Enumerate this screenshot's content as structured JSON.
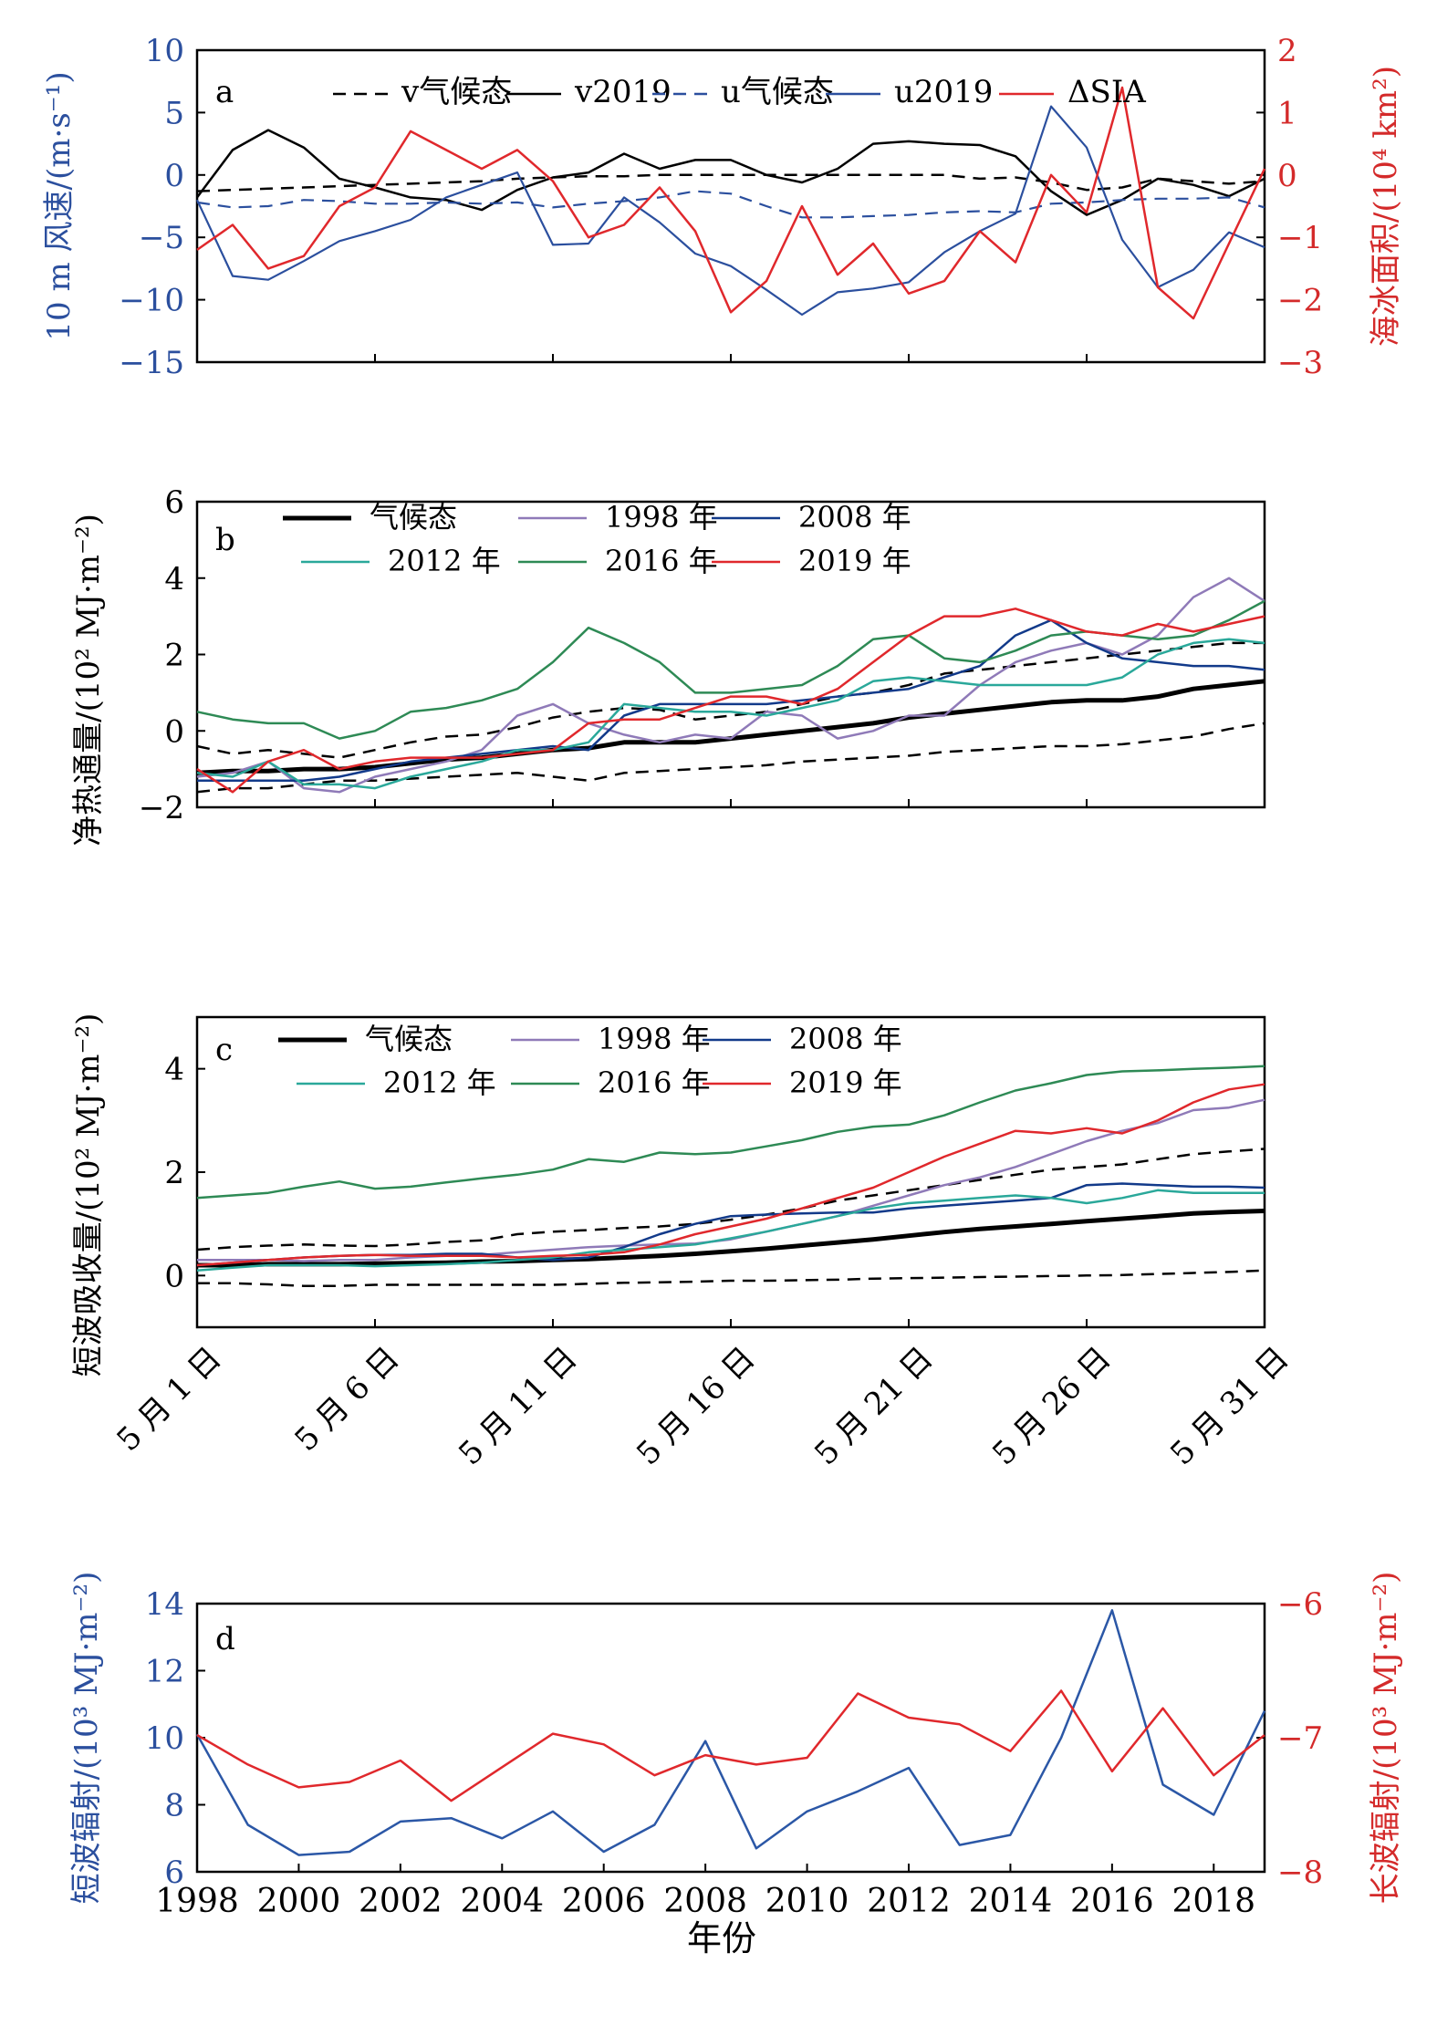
{
  "colors": {
    "black": "#000000",
    "axis_blue": "#2b4f9e",
    "axis_red": "#d42a2a",
    "purple": "#8f7ab8",
    "navy": "#123a8a",
    "teal": "#2aa89a",
    "green": "#2e8a55",
    "red": "#e0282c",
    "blue": "#2b57a6"
  },
  "chart_data": [
    {
      "panel": "a",
      "type": "line",
      "x_day": [
        1,
        2,
        3,
        4,
        5,
        6,
        7,
        8,
        9,
        10,
        11,
        12,
        13,
        14,
        15,
        16,
        17,
        18,
        19,
        20,
        21,
        22,
        23,
        24,
        25,
        26,
        27,
        28,
        29,
        30,
        31
      ],
      "ylabel_left": "10 m 风速/(m·s⁻¹)",
      "ylabel_right": "海冰面积/(10⁴ km²)",
      "ylim_left": [
        -15,
        10
      ],
      "ylim_right": [
        -3,
        2
      ],
      "yticks_left": [
        "10",
        "5",
        "0",
        "−5",
        "−10",
        "−15"
      ],
      "yticks_right": [
        "2",
        "1",
        "0",
        "−1",
        "−2",
        "−3"
      ],
      "legend": [
        "v气候态",
        "v2019",
        "u气候态",
        "u2019",
        "ΔSIA"
      ],
      "series": [
        {
          "name": "v气候态",
          "axis": "left",
          "values": [
            -1.3,
            -1.2,
            -1.1,
            -1.0,
            -0.9,
            -0.8,
            -0.7,
            -0.6,
            -0.5,
            -0.3,
            -0.2,
            -0.1,
            -0.1,
            0.0,
            0.0,
            0.0,
            0.0,
            0.0,
            0.0,
            0.0,
            0.0,
            0.0,
            -0.3,
            -0.2,
            -0.6,
            -1.2,
            -1.0,
            -0.3,
            -0.5,
            -0.7,
            -0.5
          ]
        },
        {
          "name": "v2019",
          "axis": "left",
          "values": [
            -1.8,
            2.0,
            3.6,
            2.2,
            -0.3,
            -1.0,
            -1.8,
            -2.0,
            -2.8,
            -1.2,
            -0.2,
            0.2,
            1.7,
            0.5,
            1.2,
            1.2,
            0.0,
            -0.6,
            0.5,
            2.5,
            2.7,
            2.5,
            2.4,
            1.5,
            -1.3,
            -3.2,
            -2.0,
            -0.3,
            -0.8,
            -1.7,
            -0.3
          ]
        },
        {
          "name": "u气候态",
          "axis": "left",
          "values": [
            -2.2,
            -2.6,
            -2.5,
            -2.0,
            -2.1,
            -2.3,
            -2.3,
            -2.2,
            -2.3,
            -2.2,
            -2.6,
            -2.3,
            -2.1,
            -1.8,
            -1.3,
            -1.5,
            -2.5,
            -3.4,
            -3.4,
            -3.3,
            -3.2,
            -3.0,
            -2.9,
            -3.0,
            -2.3,
            -2.2,
            -2.0,
            -1.9,
            -1.9,
            -1.8,
            -2.6
          ]
        },
        {
          "name": "u2019",
          "axis": "left",
          "values": [
            -2.0,
            -8.1,
            -8.4,
            -6.9,
            -5.3,
            -4.5,
            -3.6,
            -1.8,
            -0.8,
            0.2,
            -5.6,
            -5.5,
            -1.8,
            -3.8,
            -6.3,
            -7.3,
            -9.2,
            -11.2,
            -9.4,
            -9.1,
            -8.6,
            -6.2,
            -4.5,
            -3.1,
            5.5,
            2.2,
            -5.2,
            -9.0,
            -7.6,
            -4.6,
            -5.8
          ]
        },
        {
          "name": "ΔSIA",
          "axis": "right",
          "values": [
            -1.2,
            -0.8,
            -1.5,
            -1.3,
            -0.5,
            -0.2,
            0.7,
            0.4,
            0.1,
            0.4,
            -0.1,
            -1.0,
            -0.8,
            -0.2,
            -0.9,
            -2.2,
            -1.7,
            -0.5,
            -1.6,
            -1.1,
            -1.9,
            -1.7,
            -0.9,
            -1.4,
            0.0,
            -0.6,
            1.4,
            -1.8,
            -2.3,
            -1.1,
            0.1
          ]
        }
      ]
    },
    {
      "panel": "b",
      "type": "line",
      "x_day": [
        1,
        2,
        3,
        4,
        5,
        6,
        7,
        8,
        9,
        10,
        11,
        12,
        13,
        14,
        15,
        16,
        17,
        18,
        19,
        20,
        21,
        22,
        23,
        24,
        25,
        26,
        27,
        28,
        29,
        30,
        31
      ],
      "ylabel": "净热通量/(10² MJ·m⁻²)",
      "ylim": [
        -2,
        6
      ],
      "yticks": [
        "6",
        "4",
        "2",
        "0",
        "−2"
      ],
      "legend": [
        "气候态",
        "1998 年",
        "2008 年",
        "2012 年",
        "2016 年",
        "2019 年"
      ],
      "series": [
        {
          "name": "气候态",
          "values": [
            -1.1,
            -1.05,
            -1.05,
            -1.0,
            -1.0,
            -0.95,
            -0.85,
            -0.75,
            -0.7,
            -0.6,
            -0.5,
            -0.45,
            -0.3,
            -0.3,
            -0.3,
            -0.2,
            -0.1,
            0.0,
            0.1,
            0.2,
            0.35,
            0.45,
            0.55,
            0.65,
            0.75,
            0.8,
            0.8,
            0.9,
            1.1,
            1.2,
            1.3
          ]
        },
        {
          "name": "上界",
          "values": [
            -0.4,
            -0.6,
            -0.5,
            -0.6,
            -0.7,
            -0.5,
            -0.3,
            -0.15,
            -0.1,
            0.1,
            0.35,
            0.5,
            0.6,
            0.55,
            0.3,
            0.4,
            0.5,
            0.7,
            0.9,
            1.0,
            1.2,
            1.5,
            1.6,
            1.7,
            1.8,
            1.9,
            2.0,
            2.1,
            2.2,
            2.3,
            2.3
          ]
        },
        {
          "name": "下界",
          "values": [
            -1.6,
            -1.5,
            -1.5,
            -1.4,
            -1.3,
            -1.3,
            -1.25,
            -1.2,
            -1.15,
            -1.1,
            -1.2,
            -1.3,
            -1.1,
            -1.05,
            -1.0,
            -0.95,
            -0.9,
            -0.8,
            -0.75,
            -0.7,
            -0.65,
            -0.55,
            -0.5,
            -0.45,
            -0.4,
            -0.4,
            -0.35,
            -0.25,
            -0.15,
            0.05,
            0.2
          ]
        },
        {
          "name": "1998 年",
          "values": [
            -1.2,
            -1.1,
            -0.8,
            -1.5,
            -1.6,
            -1.2,
            -1.0,
            -0.8,
            -0.5,
            0.4,
            0.7,
            0.2,
            -0.1,
            -0.3,
            -0.1,
            -0.2,
            0.5,
            0.4,
            -0.2,
            0.0,
            0.4,
            0.4,
            1.2,
            1.8,
            2.1,
            2.3,
            2.0,
            2.5,
            3.5,
            4.0,
            3.4
          ]
        },
        {
          "name": "2008 年",
          "values": [
            -1.3,
            -1.3,
            -1.3,
            -1.3,
            -1.2,
            -1.0,
            -0.8,
            -0.7,
            -0.6,
            -0.5,
            -0.4,
            -0.5,
            0.4,
            0.7,
            0.7,
            0.7,
            0.7,
            0.8,
            0.9,
            1.0,
            1.1,
            1.4,
            1.7,
            2.5,
            2.9,
            2.3,
            1.9,
            1.8,
            1.7,
            1.7,
            1.6
          ]
        },
        {
          "name": "2012 年",
          "values": [
            -1.1,
            -1.2,
            -0.8,
            -1.4,
            -1.4,
            -1.5,
            -1.2,
            -1.0,
            -0.8,
            -0.5,
            -0.5,
            -0.3,
            0.7,
            0.6,
            0.5,
            0.5,
            0.4,
            0.6,
            0.8,
            1.3,
            1.4,
            1.3,
            1.2,
            1.2,
            1.2,
            1.2,
            1.4,
            2.0,
            2.3,
            2.4,
            2.3
          ]
        },
        {
          "name": "2016 年",
          "values": [
            0.5,
            0.3,
            0.2,
            0.2,
            -0.2,
            0.0,
            0.5,
            0.6,
            0.8,
            1.1,
            1.8,
            2.7,
            2.3,
            1.8,
            1.0,
            1.0,
            1.1,
            1.2,
            1.7,
            2.4,
            2.5,
            1.9,
            1.8,
            2.1,
            2.5,
            2.6,
            2.5,
            2.4,
            2.5,
            2.9,
            3.4
          ]
        },
        {
          "name": "2019 年",
          "values": [
            -1.0,
            -1.6,
            -0.8,
            -0.5,
            -1.0,
            -0.8,
            -0.7,
            -0.7,
            -0.7,
            -0.6,
            -0.5,
            0.2,
            0.3,
            0.3,
            0.6,
            0.9,
            0.9,
            0.7,
            1.1,
            1.8,
            2.5,
            3.0,
            3.0,
            3.2,
            2.9,
            2.6,
            2.5,
            2.8,
            2.6,
            2.8,
            3.0
          ]
        }
      ]
    },
    {
      "panel": "c",
      "type": "line",
      "x_day": [
        1,
        2,
        3,
        4,
        5,
        6,
        7,
        8,
        9,
        10,
        11,
        12,
        13,
        14,
        15,
        16,
        17,
        18,
        19,
        20,
        21,
        22,
        23,
        24,
        25,
        26,
        27,
        28,
        29,
        30,
        31
      ],
      "xtick_labels": [
        "5 月 1 日",
        "5 月 6 日",
        "5 月 11 日",
        "5 月 16 日",
        "5 月 21 日",
        "5 月 26 日",
        "5 月 31 日"
      ],
      "ylabel": "短波吸收量/(10² MJ·m⁻²)",
      "ylim": [
        -1,
        5
      ],
      "yticks": [
        "4",
        "2",
        "0"
      ],
      "legend": [
        "气候态",
        "1998 年",
        "2008 年",
        "2012 年",
        "2016 年",
        "2019 年"
      ],
      "series": [
        {
          "name": "气候态",
          "values": [
            0.2,
            0.2,
            0.22,
            0.22,
            0.22,
            0.23,
            0.24,
            0.25,
            0.27,
            0.28,
            0.3,
            0.32,
            0.35,
            0.38,
            0.42,
            0.47,
            0.52,
            0.58,
            0.64,
            0.7,
            0.77,
            0.84,
            0.9,
            0.95,
            1.0,
            1.05,
            1.1,
            1.15,
            1.2,
            1.23,
            1.25
          ]
        },
        {
          "name": "上界",
          "values": [
            0.5,
            0.55,
            0.58,
            0.6,
            0.58,
            0.57,
            0.6,
            0.65,
            0.68,
            0.8,
            0.85,
            0.88,
            0.92,
            0.95,
            1.0,
            1.08,
            1.18,
            1.3,
            1.45,
            1.55,
            1.65,
            1.75,
            1.85,
            1.95,
            2.05,
            2.1,
            2.15,
            2.25,
            2.35,
            2.4,
            2.45
          ]
        },
        {
          "name": "下界",
          "values": [
            -0.15,
            -0.15,
            -0.17,
            -0.2,
            -0.2,
            -0.18,
            -0.18,
            -0.18,
            -0.18,
            -0.18,
            -0.18,
            -0.16,
            -0.14,
            -0.13,
            -0.12,
            -0.1,
            -0.1,
            -0.09,
            -0.08,
            -0.06,
            -0.05,
            -0.04,
            -0.03,
            -0.02,
            -0.01,
            0.0,
            0.01,
            0.03,
            0.05,
            0.07,
            0.1
          ]
        },
        {
          "name": "1998 年",
          "values": [
            0.3,
            0.3,
            0.3,
            0.28,
            0.3,
            0.3,
            0.35,
            0.38,
            0.4,
            0.45,
            0.5,
            0.55,
            0.58,
            0.6,
            0.62,
            0.7,
            0.85,
            1.0,
            1.15,
            1.35,
            1.55,
            1.75,
            1.9,
            2.1,
            2.35,
            2.6,
            2.8,
            2.95,
            3.2,
            3.25,
            3.4
          ]
        },
        {
          "name": "2008 年",
          "values": [
            0.2,
            0.25,
            0.3,
            0.35,
            0.38,
            0.4,
            0.4,
            0.42,
            0.42,
            0.35,
            0.3,
            0.35,
            0.55,
            0.8,
            1.0,
            1.15,
            1.18,
            1.2,
            1.22,
            1.22,
            1.3,
            1.35,
            1.4,
            1.45,
            1.5,
            1.75,
            1.78,
            1.75,
            1.72,
            1.72,
            1.7
          ]
        },
        {
          "name": "2012 年",
          "values": [
            0.1,
            0.15,
            0.2,
            0.2,
            0.2,
            0.18,
            0.2,
            0.22,
            0.25,
            0.3,
            0.35,
            0.45,
            0.5,
            0.55,
            0.6,
            0.72,
            0.85,
            1.0,
            1.15,
            1.3,
            1.4,
            1.45,
            1.5,
            1.55,
            1.5,
            1.4,
            1.5,
            1.65,
            1.6,
            1.6,
            1.6
          ]
        },
        {
          "name": "2016 年",
          "values": [
            1.5,
            1.55,
            1.6,
            1.72,
            1.82,
            1.68,
            1.72,
            1.8,
            1.88,
            1.95,
            2.05,
            2.25,
            2.2,
            2.38,
            2.35,
            2.38,
            2.5,
            2.62,
            2.78,
            2.88,
            2.92,
            3.1,
            3.35,
            3.58,
            3.72,
            3.88,
            3.95,
            3.97,
            4.0,
            4.02,
            4.05
          ]
        },
        {
          "name": "2019 年",
          "values": [
            0.2,
            0.25,
            0.3,
            0.35,
            0.38,
            0.4,
            0.38,
            0.38,
            0.38,
            0.35,
            0.38,
            0.4,
            0.45,
            0.6,
            0.8,
            0.95,
            1.1,
            1.3,
            1.5,
            1.7,
            2.0,
            2.3,
            2.55,
            2.8,
            2.75,
            2.85,
            2.75,
            3.0,
            3.35,
            3.6,
            3.7
          ]
        }
      ]
    },
    {
      "panel": "d",
      "type": "line",
      "x": [
        1998,
        1999,
        2000,
        2001,
        2002,
        2003,
        2004,
        2005,
        2006,
        2007,
        2008,
        2009,
        2010,
        2011,
        2012,
        2013,
        2014,
        2015,
        2016,
        2017,
        2018,
        2019
      ],
      "xtick_labels": [
        "1998",
        "2000",
        "2002",
        "2004",
        "2006",
        "2008",
        "2010",
        "2012",
        "2014",
        "2016",
        "2018"
      ],
      "xlabel": "年份",
      "ylabel_left": "短波辐射/(10³ MJ·m⁻²)",
      "ylabel_right": "长波辐射/(10³ MJ·m⁻²)",
      "ylim_left": [
        6,
        14
      ],
      "ylim_right": [
        -8,
        -6
      ],
      "yticks_left": [
        "14",
        "12",
        "10",
        "8",
        "6"
      ],
      "yticks_right": [
        "−6",
        "−7",
        "−8"
      ],
      "series": [
        {
          "name": "短波辐射",
          "axis": "left",
          "values": [
            10.1,
            7.4,
            6.5,
            6.6,
            7.5,
            7.6,
            7.0,
            7.8,
            6.6,
            7.4,
            9.9,
            6.7,
            7.8,
            8.4,
            9.1,
            6.8,
            7.1,
            10.0,
            13.8,
            8.6,
            7.7,
            10.8
          ]
        },
        {
          "name": "长波辐射",
          "axis": "right",
          "values": [
            -6.98,
            -7.2,
            -7.37,
            -7.33,
            -7.17,
            -7.47,
            -7.22,
            -6.97,
            -7.05,
            -7.28,
            -7.13,
            -7.2,
            -7.15,
            -6.67,
            -6.85,
            -6.9,
            -7.1,
            -6.65,
            -7.25,
            -6.78,
            -7.28,
            -6.98
          ]
        }
      ]
    }
  ]
}
